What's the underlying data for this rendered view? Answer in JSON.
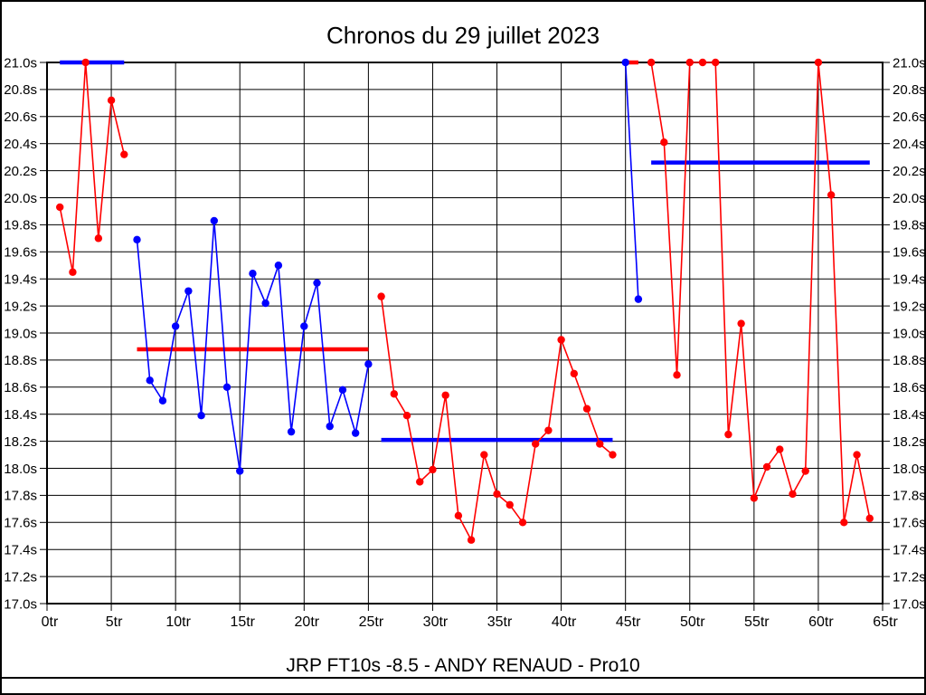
{
  "chart_data": {
    "type": "line",
    "title": "Chronos du 29 juillet 2023",
    "subtitle": "JRP FT10s -8.5 - ANDY RENAUD - Pro10",
    "x_unit": "tr",
    "y_unit": "s",
    "xlim": [
      0,
      65
    ],
    "ylim": [
      17.0,
      21.0
    ],
    "x_tick_step": 5,
    "y_tick_step": 0.2,
    "grid": true,
    "x_tick_labels": [
      "0tr",
      "5tr",
      "10tr",
      "15tr",
      "20tr",
      "25tr",
      "30tr",
      "35tr",
      "40tr",
      "45tr",
      "50tr",
      "55tr",
      "60tr",
      "65tr"
    ],
    "y_tick_labels": [
      "21.0s",
      "20.8s",
      "20.6s",
      "20.4s",
      "20.2s",
      "20.0s",
      "19.8s",
      "19.6s",
      "19.4s",
      "19.2s",
      "19.0s",
      "18.8s",
      "18.6s",
      "18.4s",
      "18.2s",
      "18.0s",
      "17.8s",
      "17.6s",
      "17.4s",
      "17.2s",
      "17.0s"
    ],
    "colors": {
      "red": "#ff0000",
      "blue": "#0000ff",
      "grid": "#000000"
    },
    "series": [
      {
        "name": "serie-1-red",
        "color": "#ff0000",
        "start_x": 1,
        "values": [
          19.93,
          19.45,
          21.0,
          19.7,
          20.72,
          20.32
        ]
      },
      {
        "name": "serie-2-blue",
        "color": "#0000ff",
        "start_x": 7,
        "values": [
          19.69,
          18.65,
          18.5,
          19.05,
          19.31,
          18.39,
          19.83,
          18.6,
          17.98,
          19.44,
          19.22,
          19.5,
          18.27,
          19.05,
          19.37,
          18.31,
          18.58,
          18.26,
          18.77
        ]
      },
      {
        "name": "serie-3-red",
        "color": "#ff0000",
        "start_x": 26,
        "values": [
          19.27,
          18.55,
          18.39,
          17.9,
          17.99,
          18.54,
          17.65,
          17.47,
          18.1,
          17.81,
          17.73,
          17.6,
          18.18,
          18.28,
          18.95,
          18.7,
          18.44,
          18.18,
          18.1
        ]
      },
      {
        "name": "serie-4-blue",
        "color": "#0000ff",
        "start_x": 45,
        "values": [
          21.0,
          19.25
        ]
      },
      {
        "name": "serie-5-red",
        "color": "#ff0000",
        "start_x": 47,
        "values": [
          21.0,
          20.41,
          18.69,
          21.0,
          21.0,
          21.0,
          18.25,
          19.07,
          17.78,
          18.01,
          18.14,
          17.81,
          17.98,
          21.0,
          20.02,
          17.6,
          18.1,
          17.63
        ]
      }
    ],
    "average_lines": [
      {
        "name": "avg-serie-1",
        "color": "#0000ff",
        "y": 21.0,
        "x_start": 1,
        "x_end": 6
      },
      {
        "name": "avg-serie-2",
        "color": "#ff0000",
        "y": 18.88,
        "x_start": 7,
        "x_end": 25
      },
      {
        "name": "avg-serie-3",
        "color": "#0000ff",
        "y": 18.21,
        "x_start": 26,
        "x_end": 44
      },
      {
        "name": "avg-serie-4",
        "color": "#ff0000",
        "y": 21.0,
        "x_start": 45,
        "x_end": 46
      },
      {
        "name": "avg-serie-5",
        "color": "#0000ff",
        "y": 20.26,
        "x_start": 47,
        "x_end": 64
      }
    ]
  }
}
